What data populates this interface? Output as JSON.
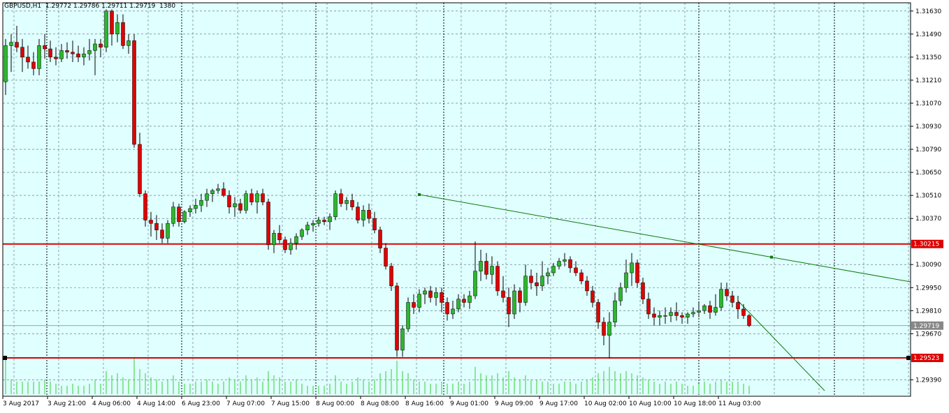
{
  "header": {
    "symbol": "GBPUSD,H1",
    "open": "1.29772",
    "high": "1.29786",
    "low": "1.29711",
    "close": "1.29719",
    "volume": "1380"
  },
  "colors": {
    "background": "#e0ffff",
    "bull": "#2db72d",
    "bear": "#e00000",
    "grid": "#556677",
    "hline": "#dd0000",
    "trend": "#0a7a0a",
    "volume": "#33cc33"
  },
  "chart_data": {
    "type": "candlestick",
    "y_range": [
      1.2929,
      1.3168
    ],
    "y_ticks": [
      "1.31630",
      "1.31490",
      "1.31350",
      "1.31210",
      "1.31070",
      "1.30930",
      "1.30790",
      "1.30650",
      "1.30510",
      "1.30370",
      "1.30090",
      "1.29950",
      "1.29810",
      "1.29670",
      "1.29390"
    ],
    "x_labels": [
      "3 Aug 2017",
      "3 Aug 21:00",
      "4 Aug 06:00",
      "4 Aug 14:00",
      "6 Aug 23:00",
      "7 Aug 07:00",
      "7 Aug 15:00",
      "8 Aug 00:00",
      "8 Aug 08:00",
      "8 Aug 16:00",
      "9 Aug 01:00",
      "9 Aug 09:00",
      "9 Aug 17:00",
      "10 Aug 02:00",
      "10 Aug 10:00",
      "10 Aug 18:00",
      "11 Aug 03:00"
    ],
    "price_labels": [
      {
        "value": "1.30215",
        "price": 1.30215,
        "color": "#dd0000"
      },
      {
        "value": "1.29719",
        "price": 1.29719,
        "color": "#888888"
      },
      {
        "value": "1.29523",
        "price": 1.29523,
        "color": "#dd0000"
      }
    ],
    "horizontal_lines": [
      1.30215,
      1.29523
    ],
    "current_price": 1.29719,
    "trendline": {
      "from_bar": 74,
      "from_price": 1.30515,
      "to_bar": 137,
      "to_price": 1.30135
    },
    "candles": [
      [
        1.312,
        1.3146,
        1.3112,
        1.3142
      ],
      [
        1.3142,
        1.3149,
        1.3126,
        1.3144
      ],
      [
        1.3144,
        1.3154,
        1.3138,
        1.3141
      ],
      [
        1.3141,
        1.3146,
        1.3126,
        1.3135
      ],
      [
        1.3135,
        1.3142,
        1.3128,
        1.3132
      ],
      [
        1.3132,
        1.3138,
        1.3124,
        1.3128
      ],
      [
        1.3128,
        1.3146,
        1.3124,
        1.3142
      ],
      [
        1.3142,
        1.3149,
        1.3134,
        1.314
      ],
      [
        1.314,
        1.3145,
        1.3132,
        1.3135
      ],
      [
        1.3135,
        1.3141,
        1.313,
        1.3134
      ],
      [
        1.3134,
        1.3143,
        1.3132,
        1.3139
      ],
      [
        1.3139,
        1.3144,
        1.3134,
        1.3138
      ],
      [
        1.3138,
        1.3145,
        1.3132,
        1.3137
      ],
      [
        1.3137,
        1.3142,
        1.3132,
        1.3135
      ],
      [
        1.3135,
        1.3141,
        1.313,
        1.3137
      ],
      [
        1.3137,
        1.3146,
        1.3133,
        1.3139
      ],
      [
        1.3139,
        1.3146,
        1.3124,
        1.3143
      ],
      [
        1.3143,
        1.3146,
        1.3135,
        1.3141
      ],
      [
        1.3141,
        1.3164,
        1.3138,
        1.3163
      ],
      [
        1.3163,
        1.3164,
        1.3142,
        1.3149
      ],
      [
        1.3149,
        1.3161,
        1.3144,
        1.3156
      ],
      [
        1.3156,
        1.3161,
        1.314,
        1.3142
      ],
      [
        1.3142,
        1.3149,
        1.3137,
        1.3145
      ],
      [
        1.3145,
        1.3149,
        1.308,
        1.3082
      ],
      [
        1.3082,
        1.3089,
        1.305,
        1.3052
      ],
      [
        1.3052,
        1.3054,
        1.3032,
        1.3036
      ],
      [
        1.3036,
        1.3041,
        1.3026,
        1.3034
      ],
      [
        1.3034,
        1.3039,
        1.3024,
        1.303
      ],
      [
        1.303,
        1.3034,
        1.3022,
        1.3025
      ],
      [
        1.3025,
        1.3036,
        1.3022,
        1.3034
      ],
      [
        1.3034,
        1.3047,
        1.3032,
        1.3044
      ],
      [
        1.3044,
        1.3046,
        1.3032,
        1.3035
      ],
      [
        1.3035,
        1.3042,
        1.3034,
        1.3041
      ],
      [
        1.3041,
        1.3045,
        1.3038,
        1.3043
      ],
      [
        1.3043,
        1.3049,
        1.304,
        1.3045
      ],
      [
        1.3045,
        1.3052,
        1.3041,
        1.3048
      ],
      [
        1.3048,
        1.3055,
        1.3044,
        1.3052
      ],
      [
        1.3052,
        1.3055,
        1.3047,
        1.3054
      ],
      [
        1.3054,
        1.3058,
        1.3052,
        1.3055
      ],
      [
        1.3055,
        1.3059,
        1.305,
        1.3051
      ],
      [
        1.3051,
        1.3054,
        1.304,
        1.3044
      ],
      [
        1.3044,
        1.305,
        1.3038,
        1.3046
      ],
      [
        1.3046,
        1.3049,
        1.304,
        1.3042
      ],
      [
        1.3042,
        1.3054,
        1.304,
        1.3052
      ],
      [
        1.3052,
        1.3055,
        1.3045,
        1.3047
      ],
      [
        1.3047,
        1.3054,
        1.304,
        1.3052
      ],
      [
        1.3052,
        1.3055,
        1.3045,
        1.3047
      ],
      [
        1.3047,
        1.3049,
        1.3018,
        1.3021
      ],
      [
        1.3021,
        1.303,
        1.3016,
        1.3028
      ],
      [
        1.3028,
        1.3033,
        1.3022,
        1.3024
      ],
      [
        1.3024,
        1.3026,
        1.3016,
        1.3018
      ],
      [
        1.3018,
        1.3025,
        1.3015,
        1.3022
      ],
      [
        1.3022,
        1.3028,
        1.3018,
        1.3026
      ],
      [
        1.3026,
        1.3031,
        1.3024,
        1.303
      ],
      [
        1.303,
        1.3035,
        1.3027,
        1.3033
      ],
      [
        1.3033,
        1.3036,
        1.3029,
        1.3034
      ],
      [
        1.3034,
        1.3038,
        1.3032,
        1.3036
      ],
      [
        1.3036,
        1.3038,
        1.3033,
        1.3035
      ],
      [
        1.3035,
        1.304,
        1.303,
        1.3038
      ],
      [
        1.3038,
        1.3054,
        1.3036,
        1.3052
      ],
      [
        1.3052,
        1.3055,
        1.3044,
        1.3046
      ],
      [
        1.3046,
        1.305,
        1.3042,
        1.3048
      ],
      [
        1.3048,
        1.3052,
        1.3042,
        1.3044
      ],
      [
        1.3044,
        1.3047,
        1.3034,
        1.3036
      ],
      [
        1.3036,
        1.3045,
        1.3032,
        1.3042
      ],
      [
        1.3042,
        1.3046,
        1.3034,
        1.3037
      ],
      [
        1.3037,
        1.3041,
        1.3028,
        1.303
      ],
      [
        1.303,
        1.3032,
        1.3016,
        1.3019
      ],
      [
        1.3019,
        1.3022,
        1.3006,
        1.3008
      ],
      [
        1.3008,
        1.301,
        1.2993,
        1.2996
      ],
      [
        1.2996,
        1.2998,
        1.2953,
        1.2957
      ],
      [
        1.2957,
        1.2972,
        1.2953,
        1.297
      ],
      [
        1.297,
        1.2989,
        1.2968,
        1.2986
      ],
      [
        1.2986,
        1.2991,
        1.2979,
        1.2983
      ],
      [
        1.2983,
        1.2994,
        1.298,
        1.2991
      ],
      [
        1.2991,
        1.2995,
        1.2985,
        1.2993
      ],
      [
        1.2993,
        1.2996,
        1.2986,
        1.2989
      ],
      [
        1.2989,
        1.2995,
        1.2984,
        1.2992
      ],
      [
        1.2992,
        1.2995,
        1.298,
        1.2986
      ],
      [
        1.2986,
        1.2989,
        1.2975,
        1.2979
      ],
      [
        1.2979,
        1.2987,
        1.2976,
        1.2982
      ],
      [
        1.2982,
        1.2991,
        1.298,
        1.2988
      ],
      [
        1.2988,
        1.2991,
        1.2983,
        1.2986
      ],
      [
        1.2986,
        1.2993,
        1.2982,
        1.299
      ],
      [
        1.299,
        1.3023,
        1.2988,
        1.3005
      ],
      [
        1.3005,
        1.3018,
        1.2999,
        1.3011
      ],
      [
        1.3011,
        1.3016,
        1.3,
        1.3003
      ],
      [
        1.3003,
        1.3014,
        1.2997,
        1.3008
      ],
      [
        1.3008,
        1.3011,
        1.299,
        1.2993
      ],
      [
        1.2993,
        1.3002,
        1.2986,
        1.2989
      ],
      [
        1.2989,
        1.2995,
        1.2971,
        1.2979
      ],
      [
        1.2979,
        1.2997,
        1.2976,
        1.2993
      ],
      [
        1.2993,
        1.2995,
        1.298,
        1.2986
      ],
      [
        1.2986,
        1.3009,
        1.2984,
        1.3002
      ],
      [
        1.3002,
        1.3006,
        1.2994,
        1.2998
      ],
      [
        1.2998,
        1.3004,
        1.299,
        1.2996
      ],
      [
        1.2996,
        1.3011,
        1.2993,
        1.3002
      ],
      [
        1.3002,
        1.3007,
        1.2997,
        1.3004
      ],
      [
        1.3004,
        1.301,
        1.3002,
        1.3008
      ],
      [
        1.3008,
        1.3013,
        1.3006,
        1.3011
      ],
      [
        1.3011,
        1.3016,
        1.3008,
        1.3012
      ],
      [
        1.3012,
        1.3014,
        1.3004,
        1.3007
      ],
      [
        1.3007,
        1.3011,
        1.3002,
        1.3004
      ],
      [
        1.3004,
        1.3006,
        1.2997,
        1.2999
      ],
      [
        1.2999,
        1.3002,
        1.299,
        1.2993
      ],
      [
        1.2993,
        1.2996,
        1.2983,
        1.2986
      ],
      [
        1.2986,
        1.2988,
        1.297,
        1.2974
      ],
      [
        1.2974,
        1.2977,
        1.296,
        1.2966
      ],
      [
        1.2966,
        1.298,
        1.2952,
        1.2974
      ],
      [
        1.2974,
        1.2992,
        1.2971,
        1.2987
      ],
      [
        1.2987,
        1.2998,
        1.2984,
        1.2995
      ],
      [
        1.2995,
        1.3012,
        1.2992,
        1.3004
      ],
      [
        1.3004,
        1.3016,
        1.2996,
        1.301
      ],
      [
        1.301,
        1.3012,
        1.2995,
        1.2998
      ],
      [
        1.2998,
        1.3001,
        1.2985,
        1.2988
      ],
      [
        1.2988,
        1.2992,
        1.2976,
        1.2979
      ],
      [
        1.2979,
        1.2983,
        1.2972,
        1.2977
      ],
      [
        1.2977,
        1.2981,
        1.2972,
        1.2978
      ],
      [
        1.2978,
        1.2983,
        1.2973,
        1.2978
      ],
      [
        1.2978,
        1.2983,
        1.2974,
        1.298
      ],
      [
        1.298,
        1.2986,
        1.2975,
        1.2978
      ],
      [
        1.2978,
        1.298,
        1.2973,
        1.2977
      ],
      [
        1.2977,
        1.298,
        1.2973,
        1.2979
      ],
      [
        1.2979,
        1.2983,
        1.2977,
        1.298
      ],
      [
        1.298,
        1.2986,
        1.2977,
        1.2981
      ],
      [
        1.2981,
        1.2985,
        1.2979,
        1.2984
      ],
      [
        1.2984,
        1.2987,
        1.2976,
        1.298
      ],
      [
        1.298,
        1.2991,
        1.2978,
        1.2983
      ],
      [
        1.2983,
        1.2998,
        1.2981,
        1.2994
      ],
      [
        1.2994,
        1.2998,
        1.2987,
        1.299
      ],
      [
        1.299,
        1.2993,
        1.2983,
        1.2986
      ],
      [
        1.2986,
        1.299,
        1.2976,
        1.2982
      ],
      [
        1.2982,
        1.2985,
        1.2976,
        1.2978
      ],
      [
        1.2978,
        1.2979,
        1.2971,
        1.2972
      ]
    ],
    "volumes": [
      0.85,
      0.35,
      0.3,
      0.3,
      0.3,
      0.3,
      0.3,
      0.35,
      0.3,
      0.25,
      0.2,
      0.2,
      0.25,
      0.2,
      0.2,
      0.25,
      0.35,
      0.25,
      0.55,
      0.45,
      0.5,
      0.4,
      0.35,
      0.85,
      0.6,
      0.5,
      0.4,
      0.35,
      0.3,
      0.35,
      0.45,
      0.3,
      0.25,
      0.25,
      0.3,
      0.3,
      0.35,
      0.3,
      0.25,
      0.3,
      0.4,
      0.35,
      0.3,
      0.45,
      0.35,
      0.4,
      0.3,
      0.55,
      0.45,
      0.4,
      0.3,
      0.3,
      0.35,
      0.25,
      0.2,
      0.2,
      0.2,
      0.2,
      0.25,
      0.45,
      0.3,
      0.25,
      0.3,
      0.4,
      0.35,
      0.3,
      0.35,
      0.5,
      0.55,
      0.6,
      0.8,
      0.55,
      0.5,
      0.35,
      0.3,
      0.3,
      0.25,
      0.25,
      0.3,
      0.25,
      0.25,
      0.3,
      0.25,
      0.3,
      0.65,
      0.5,
      0.45,
      0.45,
      0.5,
      0.4,
      0.55,
      0.4,
      0.35,
      0.45,
      0.35,
      0.35,
      0.3,
      0.3,
      0.25,
      0.25,
      0.3,
      0.3,
      0.25,
      0.3,
      0.35,
      0.4,
      0.5,
      0.55,
      0.65,
      0.55,
      0.5,
      0.55,
      0.5,
      0.45,
      0.4,
      0.35,
      0.3,
      0.25,
      0.3,
      0.25,
      0.3,
      0.25,
      0.2,
      0.2,
      0.25,
      0.3,
      0.25,
      0.3,
      0.35,
      0.3,
      0.3,
      0.3,
      0.25,
      0.2
    ]
  }
}
